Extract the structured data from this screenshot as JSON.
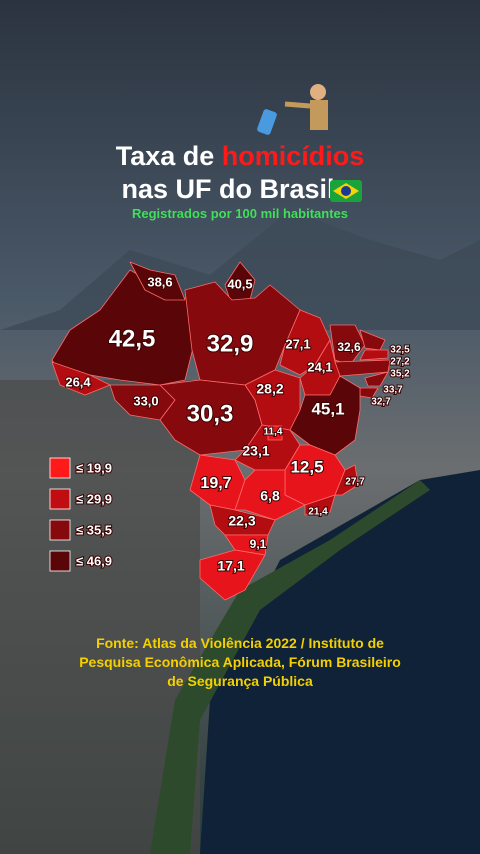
{
  "title": {
    "line1": "Taxa de ",
    "highlight": "homicídios",
    "line2": "nas UF do Brasil"
  },
  "subtitle": "Registrados por 100 mil habitantes",
  "legend": {
    "items": [
      "≤ 19,9",
      "≤ 29,9",
      "≤ 35,5",
      "≤ 46,9"
    ]
  },
  "map": {
    "labels": [
      "38,6",
      "40,5",
      "42,5",
      "32,9",
      "27,1",
      "32,6",
      "32,5",
      "27,2",
      "35,2",
      "33,7",
      "32,7",
      "24,1",
      "26,4",
      "33,0",
      "28,2",
      "30,3",
      "45,1",
      "11,4",
      "23,1",
      "12,5",
      "27,7",
      "19,7",
      "6,8",
      "21,4",
      "22,3",
      "9,1",
      "17,1"
    ]
  },
  "source": [
    "Fonte: Atlas da Violência 2022 / Instituto de",
    "Pesquisa Econômica Aplicada, Fórum Brasileiro",
    "de Segurança Pública"
  ]
}
